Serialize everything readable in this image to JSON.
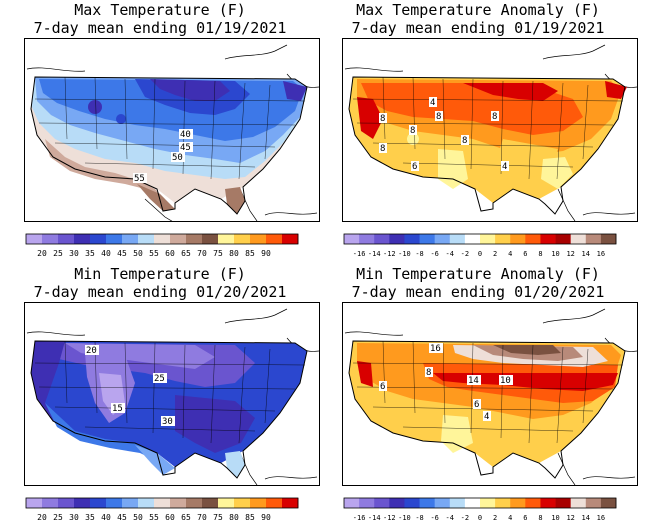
{
  "panels": [
    {
      "id": "max-temp",
      "title_line1": "Max Temperature (F)",
      "title_line2": "7-day mean ending 01/19/2021",
      "contour_labels": [
        "40",
        "45",
        "50",
        "55"
      ],
      "legend_colors": [
        "#b9a5ee",
        "#8f7be0",
        "#6a55cf",
        "#3e2fb3",
        "#2b47cf",
        "#3d78e8",
        "#78a8f4",
        "#b8dcf7",
        "#eedfd8",
        "#cfaa9c",
        "#a67a66",
        "#7a5140",
        "#fff59a",
        "#ffcf4b",
        "#ff9a1e",
        "#ff5a0a",
        "#d80000"
      ],
      "legend_labels": [
        "20",
        "25",
        "30",
        "35",
        "40",
        "45",
        "50",
        "55",
        "60",
        "65",
        "70",
        "75",
        "80",
        "85",
        "90"
      ]
    },
    {
      "id": "max-anom",
      "title_line1": "Max Temperature Anomaly (F)",
      "title_line2": "7-day mean ending 01/19/2021",
      "contour_labels": [
        "4",
        "8",
        "8",
        "8",
        "8",
        "8",
        "8",
        "6",
        "4"
      ],
      "legend_colors": [
        "#b9a5ee",
        "#8f7be0",
        "#6a55cf",
        "#3e2fb3",
        "#2b47cf",
        "#3d78e8",
        "#78a8f4",
        "#b8dcf7",
        "#ffffff",
        "#fff59a",
        "#ffcf4b",
        "#ff9a1e",
        "#ff5a0a",
        "#d80000",
        "#a80000",
        "#eedfd8",
        "#b88a7a",
        "#7a5140"
      ],
      "legend_labels": [
        "-16",
        "-14",
        "-12",
        "-10",
        "-8",
        "-6",
        "-4",
        "-2",
        "0",
        "2",
        "4",
        "6",
        "8",
        "10",
        "12",
        "14",
        "16"
      ]
    },
    {
      "id": "min-temp",
      "title_line1": "Min Temperature (F)",
      "title_line2": "7-day mean ending 01/20/2021",
      "contour_labels": [
        "20",
        "25",
        "15",
        "30"
      ],
      "legend_colors": [
        "#b9a5ee",
        "#8f7be0",
        "#6a55cf",
        "#3e2fb3",
        "#2b47cf",
        "#3d78e8",
        "#78a8f4",
        "#b8dcf7",
        "#eedfd8",
        "#cfaa9c",
        "#a67a66",
        "#7a5140",
        "#fff59a",
        "#ffcf4b",
        "#ff9a1e",
        "#ff5a0a",
        "#d80000"
      ],
      "legend_labels": [
        "20",
        "25",
        "30",
        "35",
        "40",
        "45",
        "50",
        "55",
        "60",
        "65",
        "70",
        "75",
        "80",
        "85",
        "90"
      ]
    },
    {
      "id": "min-anom",
      "title_line1": "Min Temperature Anomaly (F)",
      "title_line2": "7-day mean ending 01/20/2021",
      "contour_labels": [
        "16",
        "14",
        "10",
        "8",
        "6",
        "6",
        "4"
      ],
      "legend_colors": [
        "#b9a5ee",
        "#8f7be0",
        "#6a55cf",
        "#3e2fb3",
        "#2b47cf",
        "#3d78e8",
        "#78a8f4",
        "#b8dcf7",
        "#ffffff",
        "#fff59a",
        "#ffcf4b",
        "#ff9a1e",
        "#ff5a0a",
        "#d80000",
        "#a80000",
        "#eedfd8",
        "#b88a7a",
        "#7a5140"
      ],
      "legend_labels": [
        "-16",
        "-14",
        "-12",
        "-10",
        "-8",
        "-6",
        "-4",
        "-2",
        "0",
        "2",
        "4",
        "6",
        "8",
        "10",
        "12",
        "14",
        "16"
      ]
    }
  ]
}
